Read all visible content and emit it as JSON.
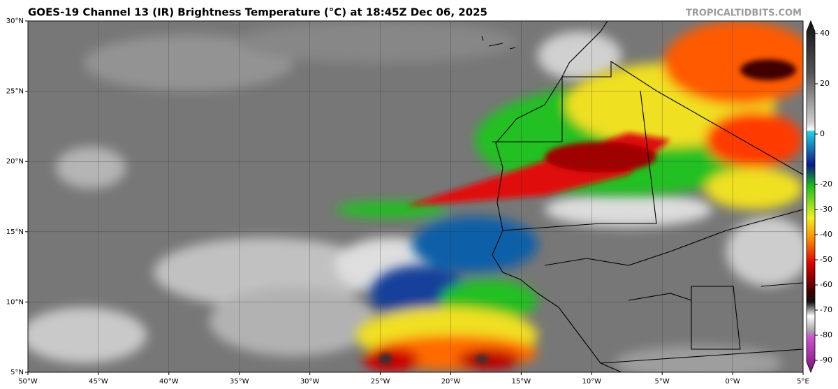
{
  "header": {
    "title": "GOES-19 Channel 13 (IR) Brightness Temperature (°C) at 18:45Z Dec 06, 2025",
    "credit": "TROPICALTIDBITS.COM"
  },
  "map": {
    "lat_labels": [
      "30°N",
      "25°N",
      "20°N",
      "15°N",
      "10°N",
      "5°N"
    ],
    "lon_labels": [
      "50°W",
      "45°W",
      "40°W",
      "35°W",
      "30°W",
      "25°W",
      "20°W",
      "15°W",
      "10°W",
      "5°W",
      "0°W",
      "5°E"
    ]
  },
  "colorbar": {
    "ticks": [
      40,
      20,
      0,
      -20,
      -30,
      -40,
      -50,
      -60,
      -70,
      -80,
      -90
    ]
  }
}
